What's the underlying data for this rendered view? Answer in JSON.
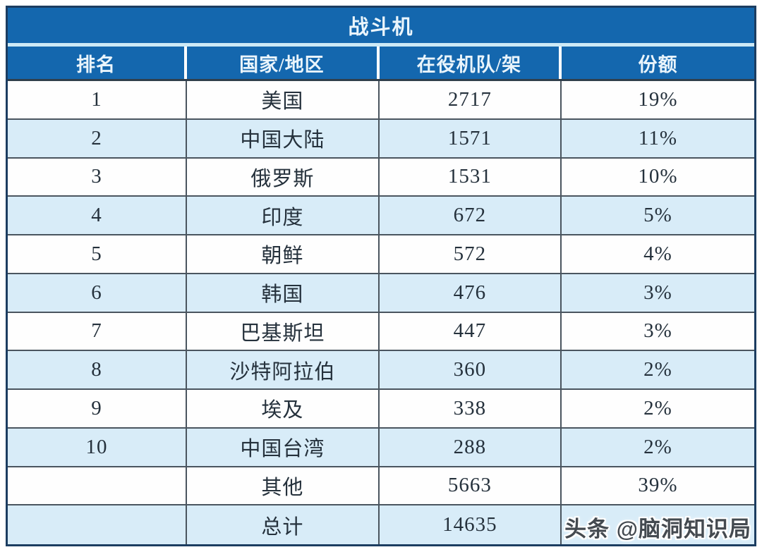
{
  "chart_data": {
    "type": "table",
    "title": "战斗机",
    "columns": [
      "排名",
      "国家/地区",
      "在役机队/架",
      "份额"
    ],
    "rows": [
      [
        "1",
        "美国",
        "2717",
        "19%"
      ],
      [
        "2",
        "中国大陆",
        "1571",
        "11%"
      ],
      [
        "3",
        "俄罗斯",
        "1531",
        "10%"
      ],
      [
        "4",
        "印度",
        "672",
        "5%"
      ],
      [
        "5",
        "朝鲜",
        "572",
        "4%"
      ],
      [
        "6",
        "韩国",
        "476",
        "3%"
      ],
      [
        "7",
        "巴基斯坦",
        "447",
        "3%"
      ],
      [
        "8",
        "沙特阿拉伯",
        "360",
        "2%"
      ],
      [
        "9",
        "埃及",
        "338",
        "2%"
      ],
      [
        "10",
        "中国台湾",
        "288",
        "2%"
      ],
      [
        "",
        "其他",
        "5663",
        "39%"
      ],
      [
        "",
        "总计",
        "14635",
        ""
      ]
    ],
    "layout_hints": {
      "alternating_row_shading": "even rows light blue",
      "header_position": "top",
      "grid": "on"
    }
  },
  "watermark": {
    "text": "头条 @脑洞知识局"
  },
  "colors": {
    "header_blue": "#1467ae",
    "header_text": "#e9f4fb",
    "row_alt_blue": "#d8ecf8",
    "row_white": "#fefefe",
    "cell_border": "#4a555f",
    "outer_border": "#1c3d61",
    "cell_text": "#25313c",
    "title_stripe": "#cde9f6"
  }
}
